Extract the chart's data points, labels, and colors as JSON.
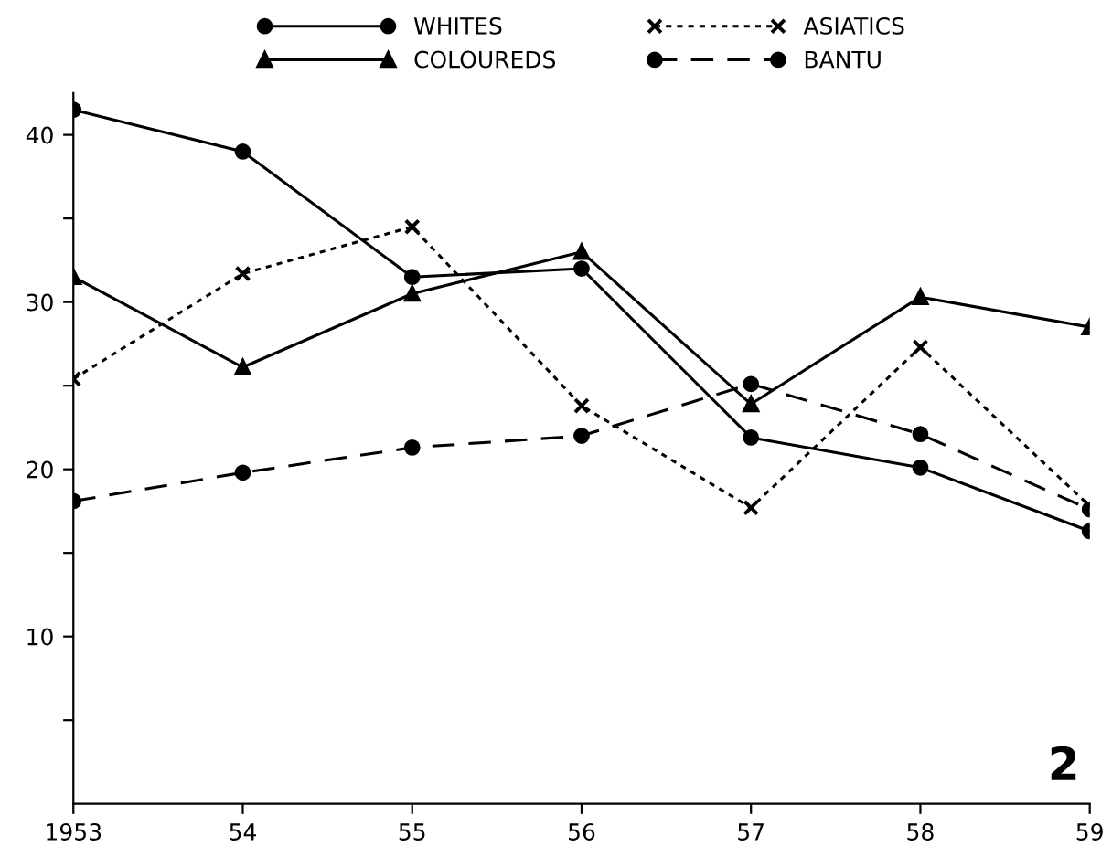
{
  "chart_data": {
    "type": "line",
    "x": [
      1953,
      1954,
      1955,
      1956,
      1957,
      1958,
      1959
    ],
    "series": [
      {
        "name": "WHITES",
        "color": "#000000",
        "values": [
          41.5,
          39,
          31.5,
          32,
          21.9,
          20.1,
          16.3
        ],
        "marker": "circle",
        "line_style": "solid"
      },
      {
        "name": "ASIATICS",
        "color": "#000000",
        "values": [
          25.4,
          31.7,
          34.5,
          23.8,
          17.7,
          27.3,
          17.8
        ],
        "marker": "cross",
        "line_style": "dotted"
      },
      {
        "name": "COLOUREDS",
        "color": "#000000",
        "values": [
          31.5,
          26.1,
          30.5,
          33,
          23.9,
          30.3,
          28.5
        ],
        "marker": "triangle",
        "line_style": "solid"
      },
      {
        "name": "BANTU",
        "color": "#000000",
        "values": [
          18.1,
          19.8,
          21.3,
          22,
          25.1,
          22.1,
          17.6
        ],
        "marker": "circle",
        "line_style": "dashed"
      }
    ],
    "xlim": [
      1953,
      1959
    ],
    "xticks": [
      1953,
      {
        "value": 1954,
        "label": "54"
      },
      {
        "value": 1955,
        "label": "55"
      },
      {
        "value": 1956,
        "label": "56"
      },
      {
        "value": 1957,
        "label": "57"
      },
      {
        "value": 1958,
        "label": "58"
      },
      {
        "value": 1959,
        "label": "59"
      }
    ],
    "ylim": [
      0,
      42.5
    ],
    "yticks": [
      {
        "value": 5,
        "label": null
      },
      10,
      {
        "value": 15,
        "label": null
      },
      20,
      {
        "value": 25,
        "label": null
      },
      30,
      {
        "value": 35,
        "label": null
      },
      40
    ],
    "grid": false,
    "legend": "top",
    "annotations": [
      "2"
    ]
  }
}
